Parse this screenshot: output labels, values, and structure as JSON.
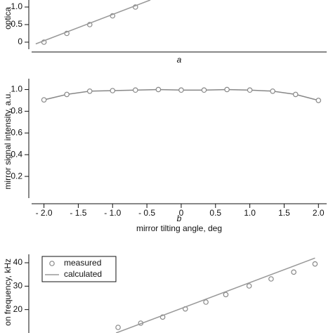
{
  "chart_data": [
    {
      "type": "line",
      "ylabel": "optica",
      "xlabel": "a",
      "xlim": [
        -2.18,
        2.12
      ],
      "ylim": [
        -0.2,
        1.2
      ],
      "yticks": [
        0,
        0.5,
        {
          "value": 1,
          "label": "1.0"
        }
      ],
      "series": [
        {
          "style": "markers",
          "color": "#888888",
          "x": [
            -2,
            -1.667,
            -1.333,
            -1,
            -0.667
          ],
          "values": [
            0,
            0.25,
            0.5,
            0.75,
            1.0
          ]
        },
        {
          "style": "lines",
          "color": "#999999",
          "x": [
            -2.12,
            -0.45
          ],
          "values": [
            -0.05,
            1.2
          ]
        }
      ]
    },
    {
      "type": "line",
      "ylabel": "mirror signal intensity, a.u.",
      "xlabel": "mirror tilting angle, deg",
      "panel": "b",
      "xlim": [
        -2.18,
        2.12
      ],
      "ylim": [
        0,
        1.1
      ],
      "xticks": [
        {
          "value": -2,
          "label": "- 2.0"
        },
        {
          "value": -1.5,
          "label": "- 1.5"
        },
        {
          "value": -1,
          "label": "- 1.0"
        },
        {
          "value": -0.5,
          "label": "- 0.5"
        },
        0,
        0.5,
        {
          "value": 1,
          "label": "1.0"
        },
        1.5,
        {
          "value": 2,
          "label": "2.0"
        }
      ],
      "yticks": [
        0.2,
        0.4,
        0.6,
        0.8,
        {
          "value": 1,
          "label": "1.0"
        }
      ],
      "series": [
        {
          "style": "lines+markers",
          "color": "#888888",
          "x": [
            -2,
            -1.667,
            -1.333,
            -1,
            -0.667,
            -0.333,
            0,
            0.333,
            0.667,
            1,
            1.333,
            1.667,
            2
          ],
          "values": [
            0.905,
            0.955,
            0.985,
            0.99,
            0.995,
            1.0,
            0.995,
            0.995,
            1.0,
            0.995,
            0.985,
            0.955,
            0.9
          ]
        }
      ]
    },
    {
      "type": "line",
      "ylabel": "on frequency, kHz",
      "xlim": [
        -2.18,
        2.12
      ],
      "ylim": [
        10,
        43.6
      ],
      "yticks": [
        20,
        30,
        40
      ],
      "legend": "top-left",
      "series": [
        {
          "name": "measured",
          "style": "markers",
          "color": "#888888",
          "x": [
            -0.92,
            -0.59,
            -0.27,
            0.06,
            0.36,
            0.65,
            0.99,
            1.31,
            1.64,
            1.95
          ],
          "values": [
            12.4,
            14.2,
            16.8,
            20.3,
            23.2,
            26.4,
            30.1,
            33.1,
            36.0,
            39.5
          ]
        },
        {
          "name": "calculated",
          "style": "lines",
          "color": "#999999",
          "x": [
            -0.95,
            1.95
          ],
          "values": [
            10,
            42
          ]
        }
      ]
    }
  ]
}
